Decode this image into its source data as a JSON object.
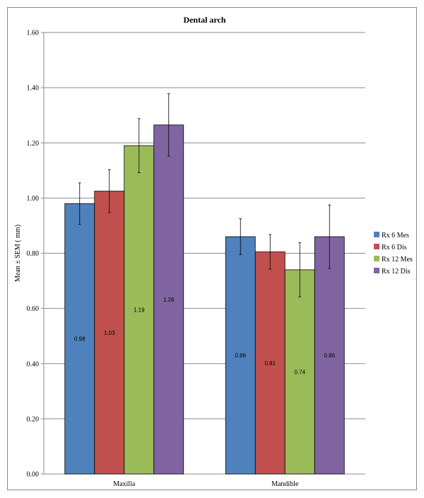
{
  "chart_data": {
    "type": "bar",
    "title": "Dental arch",
    "xlabel": "",
    "ylabel": "Mean ± SEM ( mm)",
    "ylim": [
      0,
      1.6
    ],
    "yticks": [
      "0.00",
      "0.20",
      "0.40",
      "0.60",
      "0.80",
      "1.00",
      "1.20",
      "1.40",
      "1.60"
    ],
    "grid": true,
    "legend_position": "right",
    "categories": [
      "Maxilla",
      "Mandible"
    ],
    "series": [
      {
        "name": "Rx 6 Mes",
        "color": "#4f81bd",
        "values": [
          0.98,
          0.86
        ],
        "errors": [
          0.075,
          0.065
        ],
        "labels": [
          "0.98",
          "0.86"
        ]
      },
      {
        "name": "Rx 6 Dis",
        "color": "#c0504d",
        "values": [
          1.025,
          0.805
        ],
        "errors": [
          0.078,
          0.063
        ],
        "labels": [
          "1.03",
          "0.81"
        ]
      },
      {
        "name": "Rx 12 Mes",
        "color": "#9bbb59",
        "values": [
          1.19,
          0.74
        ],
        "errors": [
          0.098,
          0.098
        ],
        "labels": [
          "1.19",
          "0.74"
        ]
      },
      {
        "name": "Rx 12 Dis",
        "color": "#8064a2",
        "values": [
          1.265,
          0.86
        ],
        "errors": [
          0.113,
          0.115
        ],
        "labels": [
          "1.26",
          "0.86"
        ]
      }
    ]
  }
}
